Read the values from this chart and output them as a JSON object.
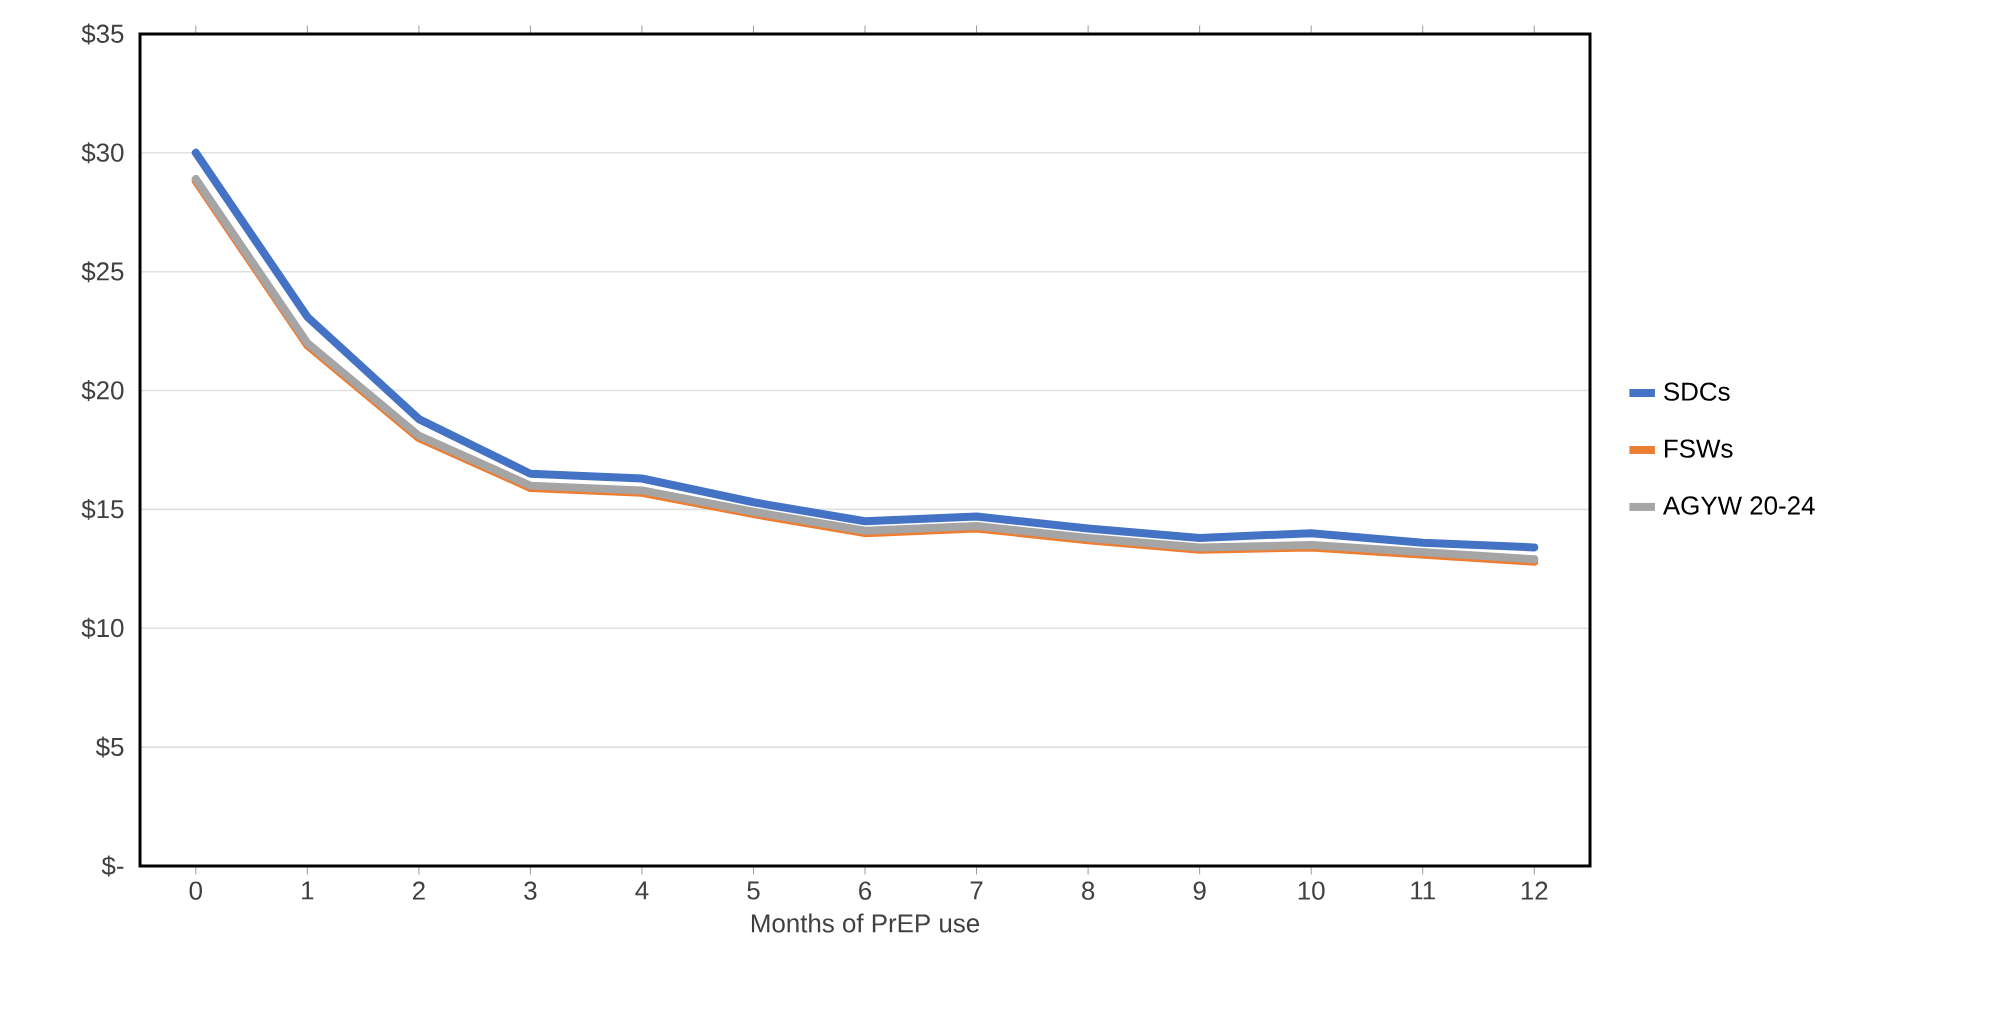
{
  "chart_data": {
    "type": "line",
    "xlabel": "Months of PrEP use",
    "categories": [
      "0",
      "1",
      "2",
      "3",
      "4",
      "5",
      "6",
      "7",
      "8",
      "9",
      "10",
      "11",
      "12"
    ],
    "series": [
      {
        "name": "SDCs",
        "color": "#4472c4",
        "values": [
          30.0,
          23.1,
          18.8,
          16.5,
          16.3,
          15.3,
          14.5,
          14.7,
          14.2,
          13.8,
          14.0,
          13.6,
          13.4
        ]
      },
      {
        "name": "FSWs",
        "color": "#ed7d31",
        "values": [
          28.8,
          21.9,
          18.0,
          15.9,
          15.7,
          14.8,
          14.0,
          14.2,
          13.7,
          13.3,
          13.4,
          13.1,
          12.8
        ]
      },
      {
        "name": "AGYW 20-24",
        "color": "#a5a5a5",
        "values": [
          28.9,
          22.0,
          18.1,
          16.0,
          15.8,
          14.9,
          14.1,
          14.3,
          13.8,
          13.4,
          13.5,
          13.2,
          12.9
        ]
      }
    ],
    "ylim": [
      0,
      35
    ],
    "yticks": [
      {
        "value": 0,
        "label": "$-"
      },
      {
        "value": 5,
        "label": "$5"
      },
      {
        "value": 10,
        "label": "$10"
      },
      {
        "value": 15,
        "label": "$15"
      },
      {
        "value": 20,
        "label": "$20"
      },
      {
        "value": 25,
        "label": "$25"
      },
      {
        "value": 30,
        "label": "$30"
      },
      {
        "value": 35,
        "label": "$35"
      }
    ],
    "grid": "y",
    "legend": "right",
    "marker": "none",
    "line_style": "solid"
  }
}
